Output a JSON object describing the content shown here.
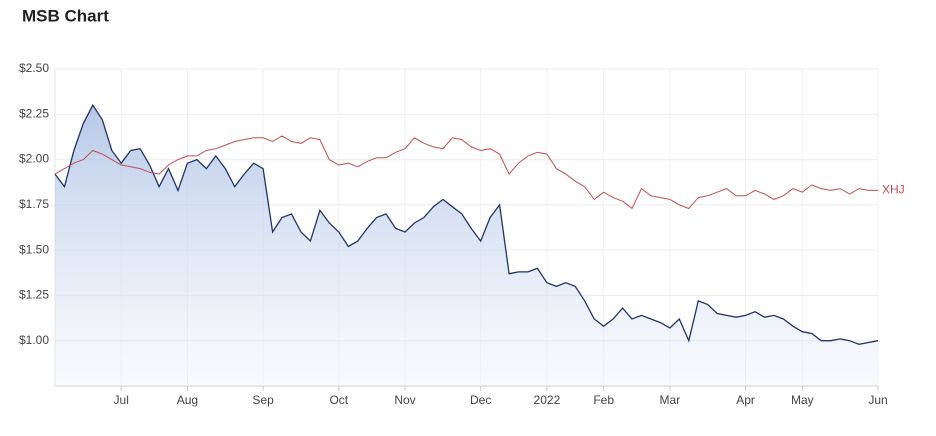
{
  "chart_data": {
    "type": "line",
    "title": "MSB Chart",
    "categories": [
      null,
      null,
      null,
      null,
      null,
      null,
      null,
      "Jul",
      null,
      null,
      null,
      null,
      null,
      null,
      "Aug",
      null,
      null,
      null,
      null,
      null,
      null,
      null,
      "Sep",
      null,
      null,
      null,
      null,
      null,
      null,
      null,
      "Oct",
      null,
      null,
      null,
      null,
      null,
      null,
      "Nov",
      null,
      null,
      null,
      null,
      null,
      null,
      null,
      "Dec",
      null,
      null,
      null,
      null,
      null,
      null,
      "2022",
      null,
      null,
      null,
      null,
      null,
      "Feb",
      null,
      null,
      null,
      null,
      null,
      null,
      "Mar",
      null,
      null,
      null,
      null,
      null,
      null,
      null,
      "Apr",
      null,
      null,
      null,
      null,
      null,
      "May",
      null,
      null,
      null,
      null,
      null,
      null,
      null,
      "Jun"
    ],
    "series": [
      {
        "color": "#1f3466",
        "fill": true,
        "values": [
          1.92,
          1.85,
          2.05,
          2.2,
          2.3,
          2.22,
          2.05,
          1.98,
          2.05,
          2.06,
          1.97,
          1.85,
          1.95,
          1.83,
          1.98,
          2.0,
          1.95,
          2.02,
          1.95,
          1.85,
          1.92,
          1.98,
          1.95,
          1.6,
          1.68,
          1.7,
          1.6,
          1.55,
          1.72,
          1.65,
          1.6,
          1.52,
          1.55,
          1.62,
          1.68,
          1.7,
          1.62,
          1.6,
          1.65,
          1.68,
          1.74,
          1.78,
          1.74,
          1.7,
          1.62,
          1.55,
          1.68,
          1.75,
          1.37,
          1.38,
          1.38,
          1.4,
          1.32,
          1.3,
          1.32,
          1.3,
          1.22,
          1.12,
          1.08,
          1.12,
          1.18,
          1.12,
          1.14,
          1.12,
          1.1,
          1.07,
          1.12,
          1.0,
          1.22,
          1.2,
          1.15,
          1.14,
          1.13,
          1.14,
          1.16,
          1.13,
          1.14,
          1.12,
          1.08,
          1.05,
          1.04,
          1.0,
          1.0,
          1.01,
          1.0,
          0.98,
          0.99,
          1.0
        ]
      },
      {
        "name": "XHJ",
        "color": "#c0504d",
        "fill": false,
        "values": [
          1.92,
          1.95,
          1.98,
          2.0,
          2.05,
          2.03,
          2.0,
          1.97,
          1.96,
          1.95,
          1.93,
          1.92,
          1.97,
          2.0,
          2.02,
          2.02,
          2.05,
          2.06,
          2.08,
          2.1,
          2.11,
          2.12,
          2.12,
          2.1,
          2.13,
          2.1,
          2.09,
          2.12,
          2.11,
          2.0,
          1.97,
          1.98,
          1.96,
          1.99,
          2.01,
          2.01,
          2.04,
          2.06,
          2.12,
          2.09,
          2.07,
          2.06,
          2.12,
          2.11,
          2.07,
          2.05,
          2.06,
          2.03,
          1.92,
          1.98,
          2.02,
          2.04,
          2.03,
          1.95,
          1.92,
          1.88,
          1.85,
          1.78,
          1.82,
          1.79,
          1.77,
          1.73,
          1.84,
          1.8,
          1.79,
          1.78,
          1.75,
          1.73,
          1.79,
          1.8,
          1.82,
          1.84,
          1.8,
          1.8,
          1.83,
          1.81,
          1.78,
          1.8,
          1.84,
          1.82,
          1.86,
          1.84,
          1.83,
          1.84,
          1.81,
          1.84,
          1.83,
          1.83
        ]
      }
    ],
    "ylim": [
      0.75,
      2.5
    ],
    "yticks": [
      {
        "value": 1,
        "label": "$1.00"
      },
      {
        "value": 1.25,
        "label": "$1.25"
      },
      {
        "value": 1.5,
        "label": "$1.50"
      },
      {
        "value": 1.75,
        "label": "$1.75"
      },
      {
        "value": 2,
        "label": "$2.00"
      },
      {
        "value": 2.25,
        "label": "$2.25"
      },
      {
        "value": 2.5,
        "label": "$2.50"
      }
    ],
    "grid": true
  }
}
